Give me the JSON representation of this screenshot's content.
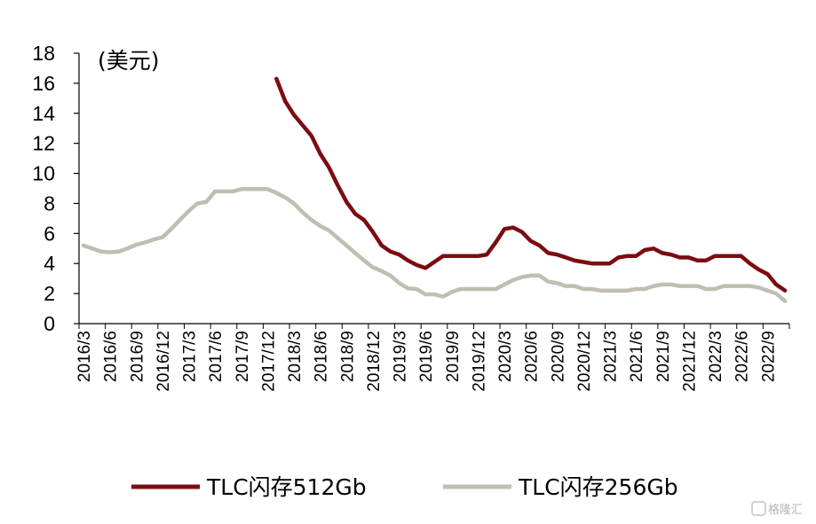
{
  "chart_data": {
    "type": "line",
    "title": "",
    "unit_label": "(美元)",
    "xlabel": "",
    "ylabel": "",
    "ylim": [
      0,
      18
    ],
    "yticks": [
      0,
      2,
      4,
      6,
      8,
      10,
      12,
      14,
      16,
      18
    ],
    "x_tick_labels": [
      "2016/3",
      "2016/6",
      "2016/9",
      "2016/12",
      "2017/3",
      "2017/6",
      "2017/9",
      "2017/12",
      "2018/3",
      "2018/6",
      "2018/9",
      "2018/12",
      "2019/3",
      "2019/6",
      "2019/9",
      "2019/12",
      "2020/3",
      "2020/6",
      "2020/9",
      "2020/12",
      "2021/3",
      "2021/6",
      "2021/9",
      "2021/12",
      "2022/3",
      "2022/6",
      "2022/9"
    ],
    "x_start": "2016/3",
    "x_end": "2022/11",
    "grid": false,
    "legend_position": "bottom",
    "series": [
      {
        "name": "TLC闪存512Gb",
        "color": "#7b0c10",
        "x": [
          "2018/1",
          "2018/2",
          "2018/3",
          "2018/4",
          "2018/5",
          "2018/6",
          "2018/7",
          "2018/8",
          "2018/9",
          "2018/10",
          "2018/11",
          "2018/12",
          "2019/1",
          "2019/2",
          "2019/3",
          "2019/4",
          "2019/5",
          "2019/6",
          "2019/7",
          "2019/8",
          "2019/9",
          "2019/10",
          "2019/11",
          "2019/12",
          "2020/1",
          "2020/2",
          "2020/3",
          "2020/4",
          "2020/5",
          "2020/6",
          "2020/7",
          "2020/8",
          "2020/9",
          "2020/10",
          "2020/11",
          "2020/12",
          "2021/1",
          "2021/2",
          "2021/3",
          "2021/4",
          "2021/5",
          "2021/6",
          "2021/7",
          "2021/8",
          "2021/9",
          "2021/10",
          "2021/11",
          "2021/12",
          "2022/1",
          "2022/2",
          "2022/3",
          "2022/4",
          "2022/5",
          "2022/6",
          "2022/7",
          "2022/8",
          "2022/9",
          "2022/10",
          "2022/11"
        ],
        "values": [
          16.3,
          14.8,
          13.9,
          13.2,
          12.5,
          11.3,
          10.4,
          9.2,
          8.1,
          7.3,
          6.9,
          6.1,
          5.2,
          4.8,
          4.6,
          4.2,
          3.9,
          3.7,
          4.1,
          4.5,
          4.5,
          4.5,
          4.5,
          4.5,
          4.6,
          5.4,
          6.3,
          6.4,
          6.1,
          5.5,
          5.2,
          4.7,
          4.6,
          4.4,
          4.2,
          4.1,
          4.0,
          4.0,
          4.0,
          4.4,
          4.5,
          4.5,
          4.9,
          5.0,
          4.7,
          4.6,
          4.4,
          4.4,
          4.2,
          4.2,
          4.5,
          4.5,
          4.5,
          4.5,
          4.0,
          3.6,
          3.3,
          2.6,
          2.2
        ]
      },
      {
        "name": "TLC闪存256Gb",
        "color": "#bfbeb0",
        "x": [
          "2016/3",
          "2016/4",
          "2016/5",
          "2016/6",
          "2016/7",
          "2016/8",
          "2016/9",
          "2016/10",
          "2016/11",
          "2016/12",
          "2017/1",
          "2017/2",
          "2017/3",
          "2017/4",
          "2017/5",
          "2017/6",
          "2017/7",
          "2017/8",
          "2017/9",
          "2017/10",
          "2017/11",
          "2017/12",
          "2018/1",
          "2018/2",
          "2018/3",
          "2018/4",
          "2018/5",
          "2018/6",
          "2018/7",
          "2018/8",
          "2018/9",
          "2018/10",
          "2018/11",
          "2018/12",
          "2019/1",
          "2019/2",
          "2019/3",
          "2019/4",
          "2019/5",
          "2019/6",
          "2019/7",
          "2019/8",
          "2019/9",
          "2019/10",
          "2019/11",
          "2019/12",
          "2020/1",
          "2020/2",
          "2020/3",
          "2020/4",
          "2020/5",
          "2020/6",
          "2020/7",
          "2020/8",
          "2020/9",
          "2020/10",
          "2020/11",
          "2020/12",
          "2021/1",
          "2021/2",
          "2021/3",
          "2021/4",
          "2021/5",
          "2021/6",
          "2021/7",
          "2021/8",
          "2021/9",
          "2021/10",
          "2021/11",
          "2021/12",
          "2022/1",
          "2022/2",
          "2022/3",
          "2022/4",
          "2022/5",
          "2022/6",
          "2022/7",
          "2022/8",
          "2022/9",
          "2022/10",
          "2022/11"
        ],
        "values": [
          5.2,
          5.0,
          4.8,
          4.75,
          4.8,
          5.0,
          5.25,
          5.4,
          5.6,
          5.75,
          6.3,
          6.9,
          7.5,
          8.0,
          8.1,
          8.8,
          8.8,
          8.8,
          8.95,
          8.95,
          8.95,
          8.95,
          8.7,
          8.4,
          8.0,
          7.4,
          6.9,
          6.5,
          6.2,
          5.7,
          5.2,
          4.7,
          4.2,
          3.75,
          3.5,
          3.2,
          2.7,
          2.35,
          2.3,
          1.95,
          1.95,
          1.8,
          2.1,
          2.3,
          2.3,
          2.3,
          2.3,
          2.3,
          2.6,
          2.9,
          3.1,
          3.2,
          3.2,
          2.8,
          2.7,
          2.5,
          2.5,
          2.3,
          2.3,
          2.2,
          2.2,
          2.2,
          2.2,
          2.3,
          2.3,
          2.5,
          2.6,
          2.6,
          2.5,
          2.5,
          2.5,
          2.3,
          2.3,
          2.5,
          2.5,
          2.5,
          2.5,
          2.4,
          2.2,
          2.0,
          1.5
        ]
      }
    ]
  },
  "watermark": "格隆汇"
}
